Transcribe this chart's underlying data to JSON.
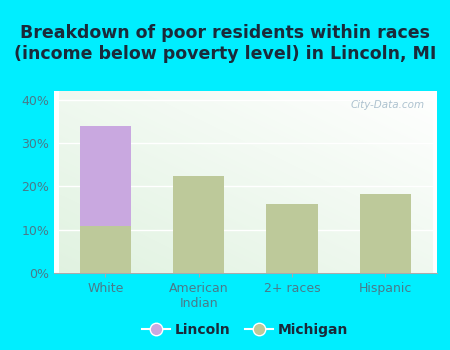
{
  "title": "Breakdown of poor residents within races\n(income below poverty level) in Lincoln, MI",
  "categories": [
    "White",
    "American\nIndian",
    "2+ races",
    "Hispanic"
  ],
  "lincoln_values": [
    34.0,
    0,
    0,
    0
  ],
  "michigan_values": [
    10.8,
    22.5,
    16.0,
    18.3
  ],
  "lincoln_color": "#c9a8e0",
  "michigan_color": "#bdc99a",
  "bar_width": 0.55,
  "ylim": [
    0,
    42
  ],
  "yticks": [
    0,
    10,
    20,
    30,
    40
  ],
  "ytick_labels": [
    "0%",
    "10%",
    "20%",
    "30%",
    "40%"
  ],
  "background_color_fig": "#00eeff",
  "title_fontsize": 12.5,
  "legend_labels": [
    "Lincoln",
    "Michigan"
  ],
  "watermark": "City-Data.com",
  "tick_color": "#4a7a8a",
  "title_color": "#1a2a3a"
}
